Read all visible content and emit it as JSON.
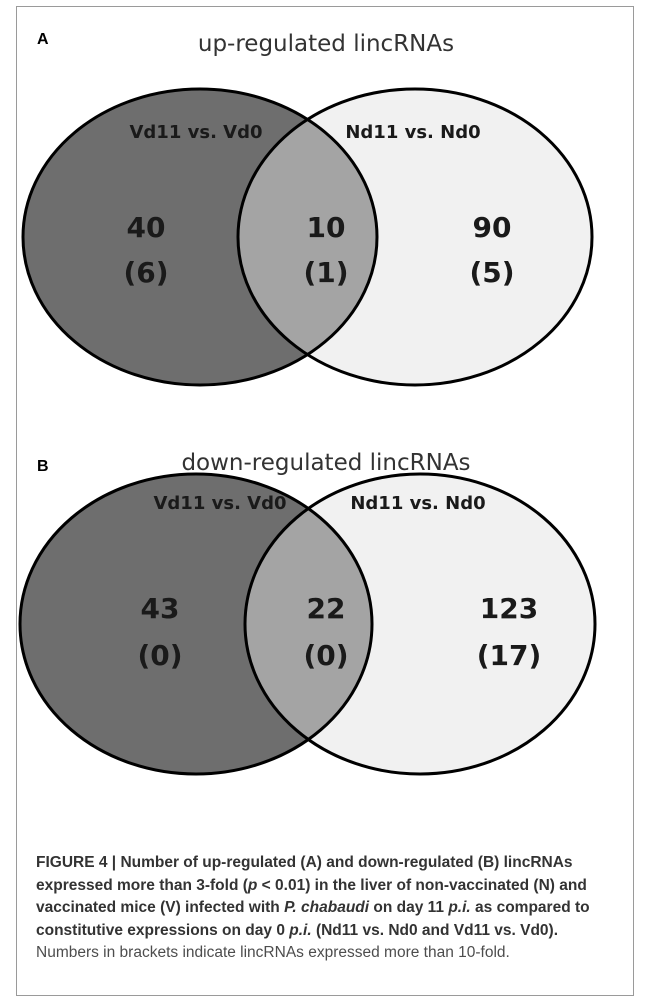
{
  "panels": [
    {
      "letter": "A",
      "title": "up-regulated lincRNAs",
      "left_set": {
        "label": "Vd11 vs. Vd0",
        "count": "40",
        "count_10fold": "(6)"
      },
      "intersection": {
        "count": "10",
        "count_10fold": "(1)"
      },
      "right_set": {
        "label": "Nd11 vs. Nd0",
        "count": "90",
        "count_10fold": "(5)"
      }
    },
    {
      "letter": "B",
      "title": "down-regulated lincRNAs",
      "left_set": {
        "label": "Vd11 vs. Vd0",
        "count": "43",
        "count_10fold": "(0)"
      },
      "intersection": {
        "count": "22",
        "count_10fold": "(0)"
      },
      "right_set": {
        "label": "Nd11 vs. Nd0",
        "count": "123",
        "count_10fold": "(17)"
      }
    }
  ],
  "colors": {
    "left": "#6e6e6e",
    "overlap": "#a4a4a4",
    "right": "#f1f1f1",
    "stroke": "#000000"
  },
  "caption": {
    "figure_label": "FIGURE 4 | ",
    "b1": "Number of up-regulated (A) and down-regulated (B) lincRNAs expressed more than 3-fold (",
    "p_var": "p",
    "b2": " < 0.01) in the liver of non-vaccinated (N) and vaccinated mice (V) infected with ",
    "species": "P. chabaudi",
    "b3": " on day 11 ",
    "pi1": "p.i.",
    "b4": " as compared to constitutive expressions on day 0 ",
    "pi2": "p.i.",
    "b5": " (Nd11 vs. Nd0 and Vd11 vs. Vd0).",
    "normal": " Numbers in brackets indicate lincRNAs expressed more than 10-fold."
  }
}
